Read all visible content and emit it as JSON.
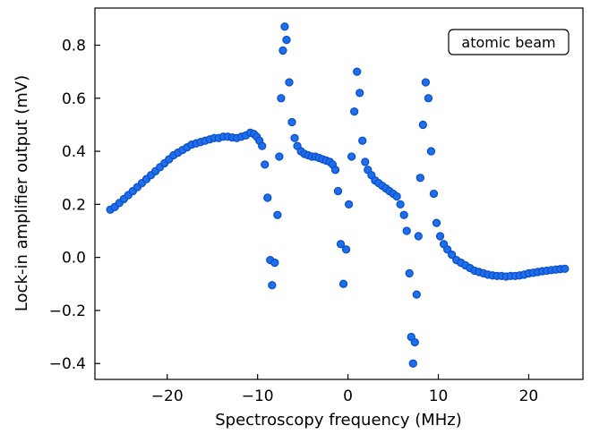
{
  "chart_data": {
    "type": "scatter",
    "xlabel": "Spectroscopy frequency (MHz)",
    "ylabel": "Lock-in amplifier output (mV)",
    "xlim": [
      -28,
      26
    ],
    "ylim": [
      -0.46,
      0.94
    ],
    "xticks": [
      -20,
      -10,
      0,
      10,
      20
    ],
    "xtick_labels": [
      "−20",
      "−10",
      "0",
      "10",
      "20"
    ],
    "yticks": [
      -0.4,
      -0.2,
      0.0,
      0.2,
      0.4,
      0.6,
      0.8
    ],
    "ytick_labels": [
      "−0.4",
      "−0.2",
      "0.0",
      "0.2",
      "0.4",
      "0.6",
      "0.8"
    ],
    "grid": false,
    "annotation": "atomic beam",
    "annotation_position": "top-right",
    "marker_color": "#1f6fe8",
    "marker_edge_color": "#0b4fd0",
    "series": [
      {
        "x": [
          -26.3,
          -25.8,
          -25.3,
          -24.8,
          -24.3,
          -23.8,
          -23.3,
          -22.8,
          -22.3,
          -21.8,
          -21.3,
          -20.8,
          -20.3,
          -19.8,
          -19.3,
          -18.8,
          -18.3,
          -17.8,
          -17.3,
          -16.8,
          -16.3,
          -15.8,
          -15.3,
          -14.8,
          -14.3,
          -13.8,
          -13.3,
          -12.8,
          -12.3,
          -11.8,
          -11.3,
          -10.8,
          -10.4,
          -10.1,
          -9.8,
          -9.5,
          -9.2,
          -8.9,
          -8.6,
          -8.4,
          -8.1,
          -7.8,
          -7.6,
          -7.4,
          -7.2,
          -7.0,
          -6.8,
          -6.5,
          -6.2,
          -5.9,
          -5.6,
          -5.2,
          -4.8,
          -4.4,
          -4.0,
          -3.6,
          -3.2,
          -2.8,
          -2.4,
          -2.0,
          -1.7,
          -1.4,
          -1.1,
          -0.8,
          -0.5,
          -0.2,
          0.1,
          0.4,
          0.7,
          1.0,
          1.3,
          1.6,
          1.9,
          2.2,
          2.6,
          3.0,
          3.4,
          3.8,
          4.2,
          4.6,
          5.0,
          5.4,
          5.8,
          6.2,
          6.5,
          6.8,
          7.0,
          7.2,
          7.4,
          7.6,
          7.8,
          8.0,
          8.3,
          8.6,
          8.9,
          9.2,
          9.5,
          9.8,
          10.2,
          10.6,
          11.0,
          11.5,
          12.0,
          12.5,
          13.0,
          13.5,
          14.0,
          14.5,
          15.0,
          15.5,
          16.0,
          16.5,
          17.0,
          17.5,
          18.0,
          18.5,
          19.0,
          19.5,
          20.0,
          20.5,
          21.0,
          21.5,
          22.0,
          22.5,
          23.0,
          23.5,
          24.0
        ],
        "y": [
          0.18,
          0.19,
          0.205,
          0.22,
          0.235,
          0.25,
          0.265,
          0.28,
          0.295,
          0.31,
          0.325,
          0.34,
          0.355,
          0.37,
          0.385,
          0.395,
          0.405,
          0.415,
          0.425,
          0.43,
          0.435,
          0.44,
          0.445,
          0.45,
          0.45,
          0.455,
          0.455,
          0.452,
          0.45,
          0.455,
          0.46,
          0.47,
          0.465,
          0.455,
          0.44,
          0.42,
          0.35,
          0.225,
          -0.01,
          -0.105,
          -0.02,
          0.16,
          0.38,
          0.6,
          0.78,
          0.87,
          0.82,
          0.66,
          0.51,
          0.45,
          0.42,
          0.4,
          0.39,
          0.385,
          0.38,
          0.38,
          0.375,
          0.37,
          0.365,
          0.36,
          0.35,
          0.33,
          0.25,
          0.05,
          -0.1,
          0.03,
          0.2,
          0.38,
          0.55,
          0.7,
          0.62,
          0.44,
          0.36,
          0.33,
          0.31,
          0.29,
          0.28,
          0.27,
          0.26,
          0.25,
          0.24,
          0.23,
          0.2,
          0.16,
          0.1,
          -0.06,
          -0.3,
          -0.4,
          -0.32,
          -0.14,
          0.08,
          0.3,
          0.5,
          0.66,
          0.6,
          0.4,
          0.24,
          0.13,
          0.08,
          0.05,
          0.03,
          0.01,
          -0.01,
          -0.02,
          -0.03,
          -0.04,
          -0.05,
          -0.055,
          -0.06,
          -0.065,
          -0.068,
          -0.07,
          -0.07,
          -0.072,
          -0.07,
          -0.07,
          -0.068,
          -0.065,
          -0.06,
          -0.058,
          -0.055,
          -0.052,
          -0.05,
          -0.048,
          -0.046,
          -0.044,
          -0.043
        ]
      }
    ]
  }
}
